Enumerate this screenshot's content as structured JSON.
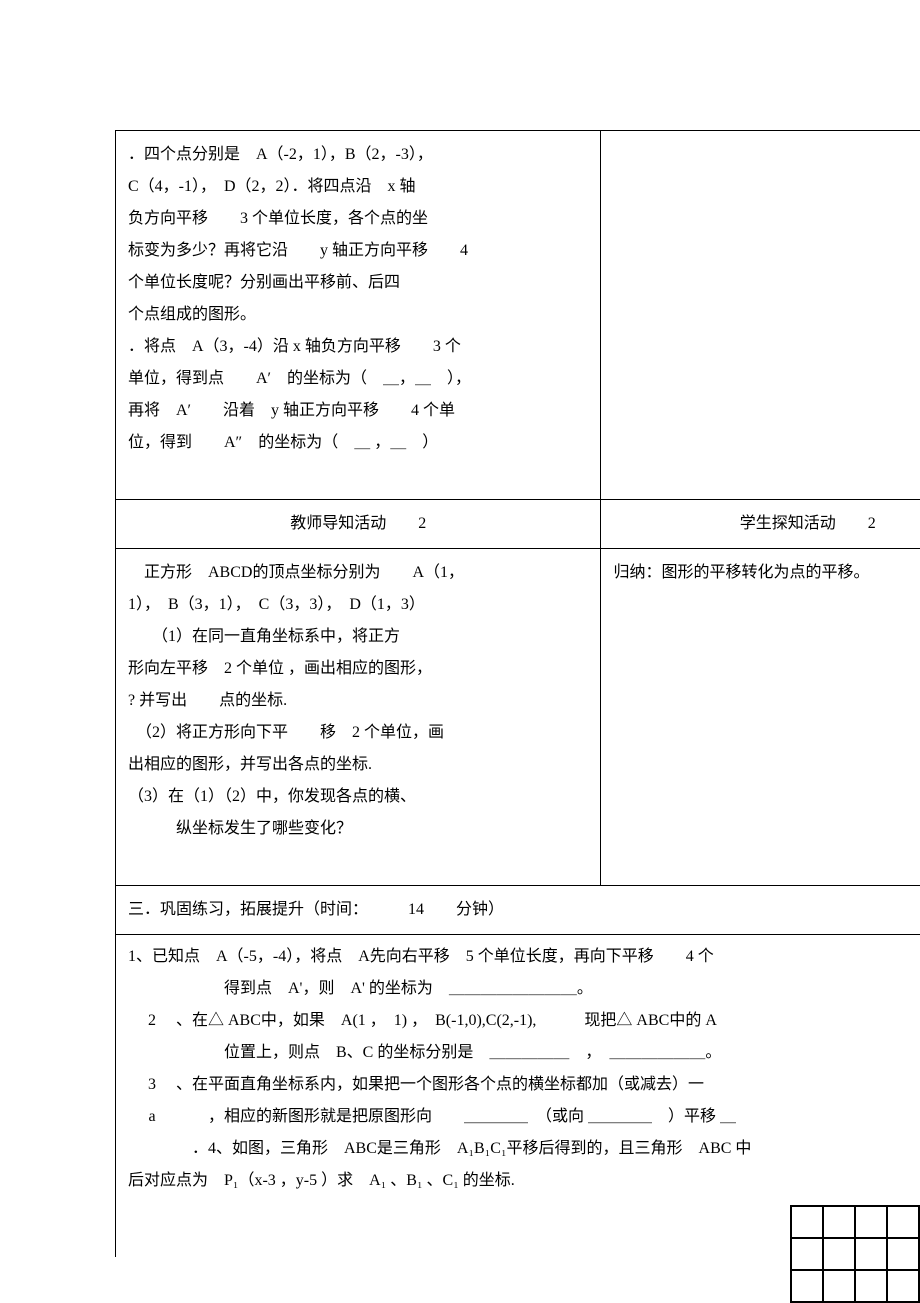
{
  "cell1": {
    "line1": "．四个点分别是　A（-2，1），B（2，-3），",
    "line2": "C（4，-1），　D（2，2）．将四点沿　x 轴",
    "line3": "负方向平移　　3 个单位长度，各个点的坐",
    "line4": "标变为多少？再将它沿　　y 轴正方向平移　　4",
    "line5": "个单位长度呢？分别画出平移前、后四",
    "line6": "个点组成的图形。",
    "line7": "．将点　A（3，-4）沿 x 轴负方向平移　　3 个",
    "line8": "单位，得到点　　A′　的坐标为（　＿，＿　），",
    "line9": "再将　A′　　沿着　y 轴正方向平移　　4 个单",
    "line10": "位，得到　　A″　的坐标为（　＿ ，＿　）"
  },
  "header1": "教师导知活动　　2",
  "header2": "学生探知活动　　2",
  "cell3": {
    "line1": "　正方形　ABCD的顶点坐标分别为　　A（1，",
    "line2": "1），　B（3，1），　C（3，3），　D（1，3）",
    "line3": "　　（1）在同一直角坐标系中，将正方",
    "line4": "形向左平移　2 个单位 ，画出相应的图形，",
    "line5": "? 并写出　　点的坐标.",
    "line6": "　（2）将正方形向下平　　移　2 个单位，画",
    "line7": "出相应的图形，并写出各点的坐标.",
    "line8": "（3）在（1）（2）中，你发现各点的横、",
    "line9": "　　　纵坐标发生了哪些变化？"
  },
  "cell4": "归纳：图形的平移转化为点的平移。",
  "section3_header": "三．巩固练习，拓展提升（时间：　　　14　　分钟）",
  "section3": {
    "line1": "1、已知点　A（-5，-4），将点　A先向右平移　5 个单位长度，再向下平移　　4 个",
    "line2": "得到点　A'，则　A' 的坐标为　＿＿＿＿＿＿＿＿。",
    "line3_prefix": "2",
    "line3": "、在△ ABC中，如果　A(1 ，　1) ，　B(-1,0),C(2,-1),　　　现把△ ABC中的 A",
    "line4": "位置上，则点　B、C 的坐标分别是　＿＿＿＿＿　，　＿＿＿＿＿＿。",
    "line5_prefix": "3",
    "line5": "、在平面直角坐标系内，如果把一个图形各个点的横坐标都加（或减去）一",
    "line6_prefix": "a",
    "line6": "　　，相应的新图形就是把原图形向　　＿＿＿＿　（或向 ＿＿＿＿　）平移 ＿",
    "line7": "．4、如图，三角形　ABC是三角形　A₁B₁C₁平移后得到的，且三角形　ABC 中",
    "line8": "后对应点为　P₁（x-3 ，y-5 ）求　A₁ 、B₁ 、C₁ 的坐标."
  },
  "grid": {
    "stroke": "#000000",
    "stroke_width": 2,
    "cell_size": 32,
    "cols": 4,
    "rows": 3
  }
}
